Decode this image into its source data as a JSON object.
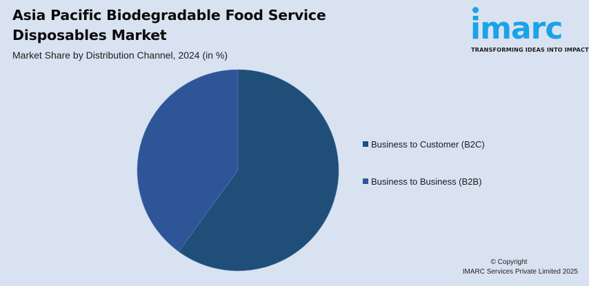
{
  "header": {
    "title": "Asia Pacific Biodegradable Food Service Disposables Market",
    "subtitle": "Market Share by Distribution Channel, 2024 (in %)"
  },
  "logo": {
    "brand": "imarc",
    "tagline": "TRANSFORMING IDEAS INTO IMPACT",
    "color": "#1aa3e8"
  },
  "footer": {
    "copyright_line1": "© Copyright",
    "copyright_line2": "IMARC Services Private Limited 2025"
  },
  "chart_data": {
    "type": "pie",
    "title": "Asia Pacific Biodegradable Food Service Disposables Market",
    "subtitle": "Market Share by Distribution Channel, 2024 (in %)",
    "legend_position": "right",
    "series": [
      {
        "name": "Business to Customer (B2C)",
        "value": 60,
        "color": "#1f4e79"
      },
      {
        "name": "Business to Business (B2B)",
        "value": 40,
        "color": "#2e5597"
      }
    ]
  }
}
